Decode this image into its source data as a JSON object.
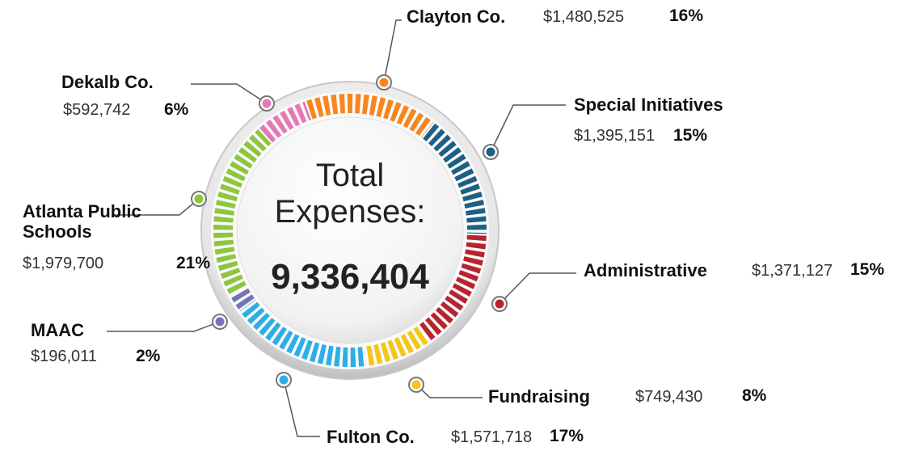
{
  "chart_data": {
    "type": "pie",
    "center_title": "Total Expenses:",
    "total": 9336404,
    "total_label": "9,336,404",
    "categories": [
      "Clayton Co.",
      "Special Initiatives",
      "Administrative",
      "Fundraising",
      "Fulton Co.",
      "MAAC",
      "Atlanta Public Schools",
      "Dekalb Co."
    ],
    "values": [
      1480525,
      1395151,
      1371127,
      749430,
      1571718,
      196011,
      1979700,
      592742
    ],
    "value_labels": [
      "$1,480,525",
      "$1,395,151",
      "$1,371,127",
      "$749,430",
      "$1,571,718",
      "$196,011",
      "$1,979,700",
      "$592,742"
    ],
    "shares": [
      16,
      15,
      15,
      8,
      17,
      2,
      21,
      6
    ],
    "share_labels": [
      "16%",
      "15%",
      "15%",
      "8%",
      "17%",
      "2%",
      "21%",
      "6%"
    ],
    "colors": [
      "#f7861e",
      "#1d5f85",
      "#b8232f",
      "#f5c518",
      "#2eaee6",
      "#7474b8",
      "#8dc63f",
      "#e579b4"
    ]
  }
}
